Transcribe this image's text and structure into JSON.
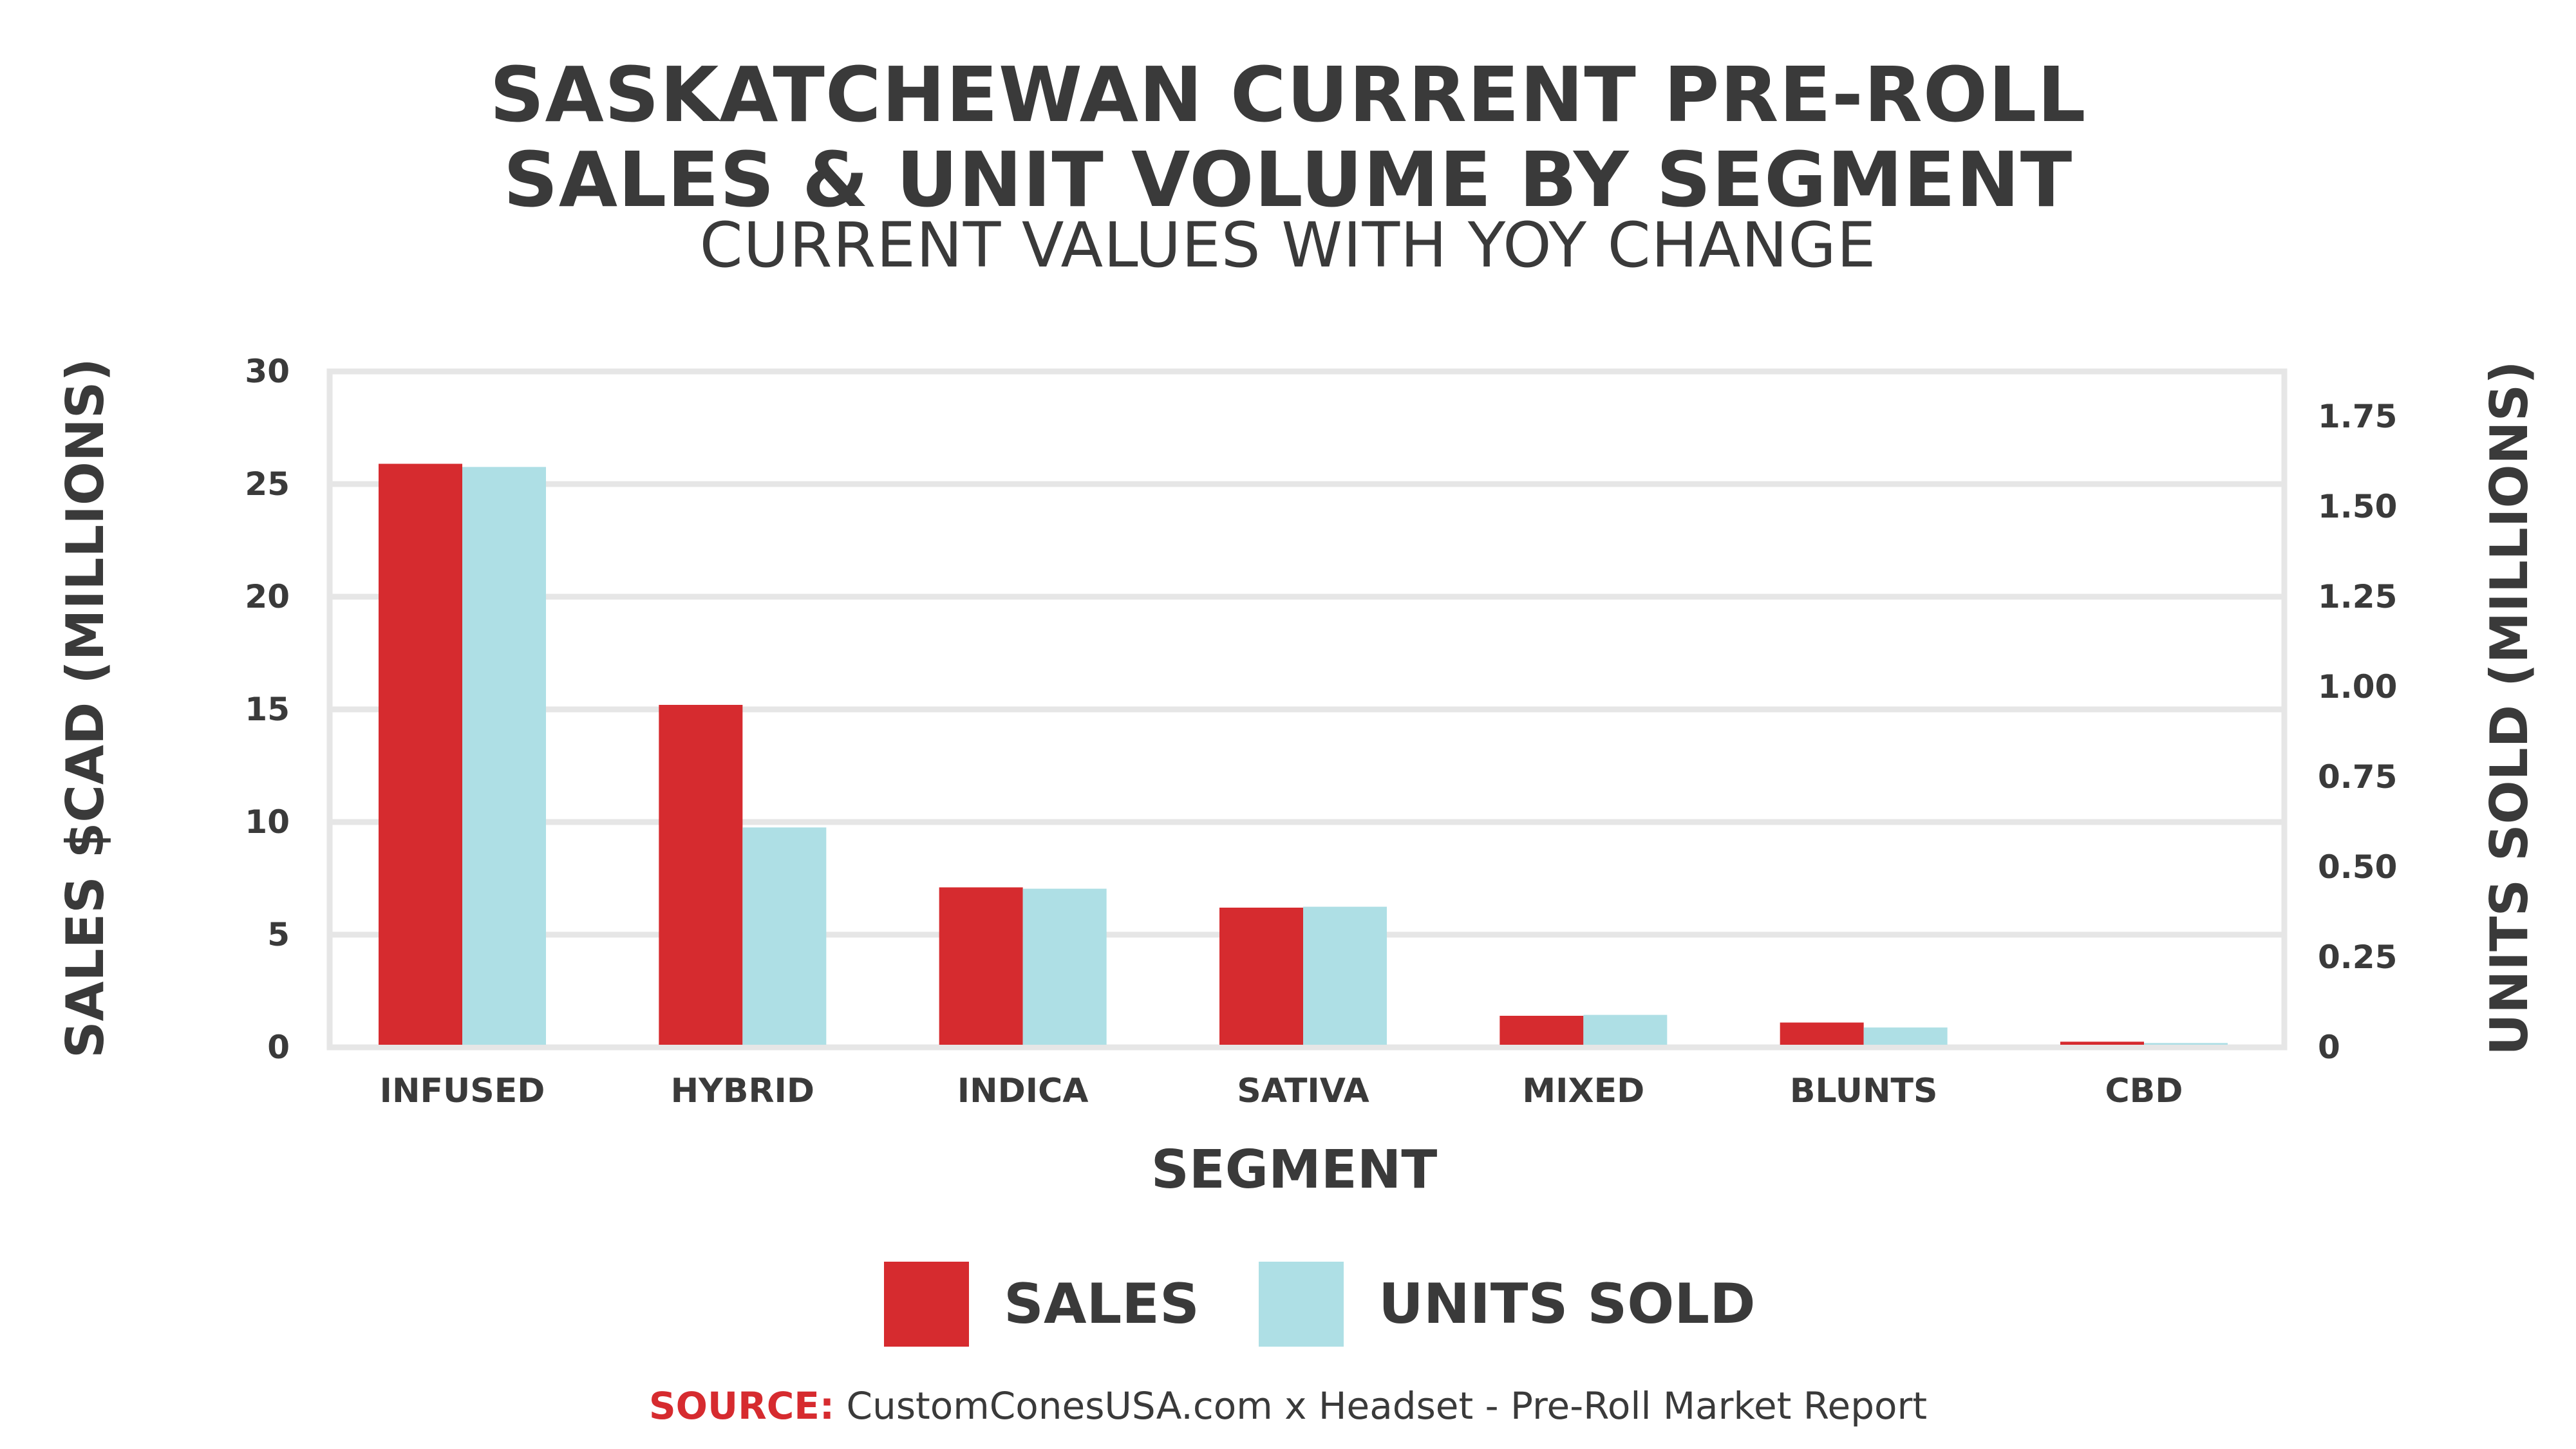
{
  "title_line1": "SASKATCHEWAN CURRENT PRE-ROLL",
  "title_line2": "SALES & UNIT VOLUME BY SEGMENT",
  "subtitle": "CURRENT VALUES WITH YOY CHANGE",
  "source_label": "SOURCE:",
  "source_text": " CustomConesUSA.com x Headset - Pre-Roll Market Report",
  "colors": {
    "sales": "#d62b2f",
    "units": "#aedfe5",
    "text": "#3a3a3a",
    "grid": "#e6e6e6"
  },
  "chart_data": {
    "type": "bar",
    "categories": [
      "INFUSED",
      "HYBRID",
      "INDICA",
      "SATIVA",
      "MIXED",
      "BLUNTS",
      "CBD"
    ],
    "xlabel": "SEGMENT",
    "ylabel_left": "SALES $CAD (MILLIONS)",
    "ylabel_right": "UNITS SOLD (MILLIONS)",
    "ylim_left": [
      0,
      30
    ],
    "ylim_right": [
      0,
      1.875
    ],
    "yticks_left": [
      "0",
      "5",
      "10",
      "15",
      "20",
      "25",
      "30"
    ],
    "yticks_right": [
      "0",
      "0.25",
      "0.50",
      "0.75",
      "1.00",
      "1.25",
      "1.50",
      "1.75"
    ],
    "grid": true,
    "legend_position": "bottom",
    "series": [
      {
        "name": "SALES",
        "axis": "left",
        "values": [
          25.9,
          15.2,
          7.1,
          6.2,
          1.4,
          1.1,
          0.25
        ]
      },
      {
        "name": "UNITS SOLD",
        "axis": "right",
        "values": [
          1.61,
          0.61,
          0.44,
          0.39,
          0.09,
          0.055,
          0.012
        ]
      }
    ]
  }
}
